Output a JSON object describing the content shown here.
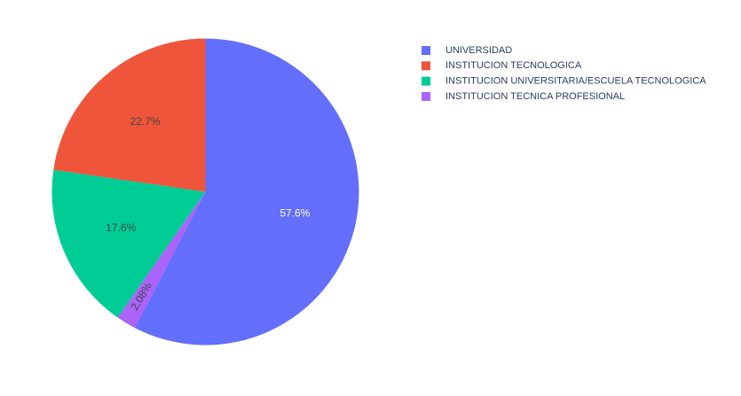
{
  "chart_data": {
    "type": "pie",
    "title": "",
    "slices": [
      {
        "label": "UNIVERSIDAD",
        "value": 57.6,
        "display": "57.6%",
        "color": "#636efa",
        "text_color": "#ffffff"
      },
      {
        "label": "INSTITUCION TECNICA PROFESIONAL",
        "value": 2.08,
        "display": "2.08%",
        "color": "#ab63fa",
        "text_color": "#444444"
      },
      {
        "label": "INSTITUCION UNIVERSITARIA/ESCUELA TECNOLOGICA",
        "value": 17.6,
        "display": "17.6%",
        "color": "#00cc96",
        "text_color": "#444444"
      },
      {
        "label": "INSTITUCION TECNOLOGICA",
        "value": 22.7,
        "display": "22.7%",
        "color": "#ef553b",
        "text_color": "#444444"
      }
    ],
    "legend": {
      "placement": "top-right",
      "entries": [
        {
          "label": "UNIVERSIDAD",
          "color": "#636efa"
        },
        {
          "label": "INSTITUCION TECNOLOGICA",
          "color": "#ef553b"
        },
        {
          "label": "INSTITUCION UNIVERSITARIA/ESCUELA TECNOLOGICA",
          "color": "#00cc96"
        },
        {
          "label": "INSTITUCION TECNICA PROFESIONAL",
          "color": "#ab63fa"
        }
      ]
    },
    "direction": "clockwise",
    "start_angle": "12 o'clock"
  }
}
